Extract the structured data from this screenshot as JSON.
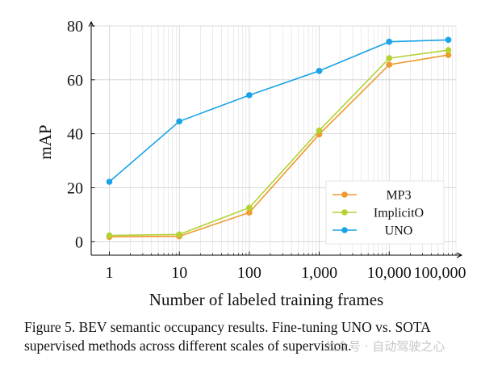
{
  "chart_data": {
    "type": "line",
    "xlabel": "Number of labeled training frames",
    "ylabel": "mAP",
    "xscale": "log",
    "xlim": [
      0.55,
      90000
    ],
    "ylim": [
      -5,
      80
    ],
    "x_ticks": [
      1,
      10,
      100,
      1000,
      10000,
      100000
    ],
    "x_tick_labels": [
      "1",
      "10",
      "100",
      "1,000",
      "10,000",
      "100,000"
    ],
    "y_ticks": [
      0,
      20,
      40,
      60,
      80
    ],
    "y_tick_labels": [
      "0",
      "20",
      "40",
      "60",
      "80"
    ],
    "grid": true,
    "legend_position": "bottom-right",
    "series": [
      {
        "name": "MP3",
        "color": "#ee9a2e",
        "x": [
          1,
          10,
          100,
          1000,
          10000,
          70000
        ],
        "y": [
          1.8,
          2.0,
          10.8,
          39.8,
          65.6,
          69.2
        ]
      },
      {
        "name": "ImplicitO",
        "color": "#b5d234",
        "x": [
          1,
          10,
          100,
          1000,
          10000,
          70000
        ],
        "y": [
          2.3,
          2.7,
          12.6,
          41.2,
          68.0,
          71.0
        ]
      },
      {
        "name": "UNO",
        "color": "#1aa3e6",
        "x": [
          1,
          10,
          100,
          1000,
          10000,
          70000
        ],
        "y": [
          22.2,
          44.6,
          54.3,
          63.3,
          74.1,
          74.8
        ]
      }
    ]
  },
  "caption": "Figure 5. BEV semantic occupancy results. Fine-tuning UNO vs. SOTA supervised methods across different scales of supervision.",
  "watermark": "公众号 · 自动驾驶之心"
}
